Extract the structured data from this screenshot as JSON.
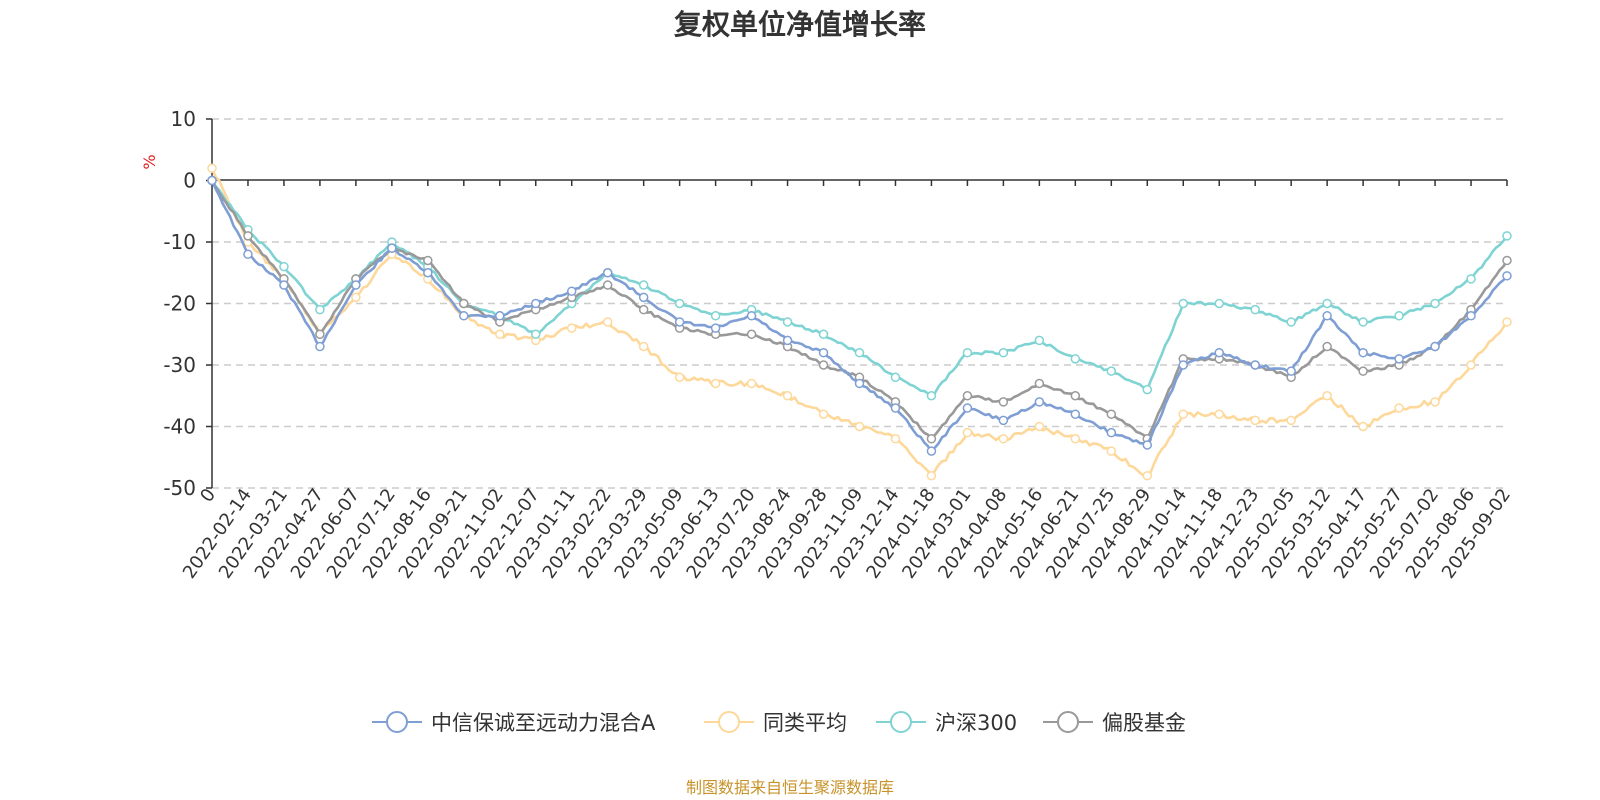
{
  "chart_data": {
    "type": "line",
    "title": "复权单位净值增长率",
    "ylabel": "%",
    "ylim": [
      -50,
      10
    ],
    "yticks": [
      10,
      0,
      -10,
      -20,
      -30,
      -40,
      -50
    ],
    "grid": true,
    "legend_position": "bottom",
    "x_labels": [
      "0",
      "2022-02-14",
      "2022-03-21",
      "2022-04-27",
      "2022-06-07",
      "2022-07-12",
      "2022-08-16",
      "2022-09-21",
      "2022-11-02",
      "2022-12-07",
      "2023-01-11",
      "2023-02-22",
      "2023-03-29",
      "2023-05-09",
      "2023-06-13",
      "2023-07-20",
      "2023-08-24",
      "2023-09-28",
      "2023-11-09",
      "2023-12-14",
      "2024-01-18",
      "2024-03-01",
      "2024-04-08",
      "2024-05-16",
      "2024-06-21",
      "2024-07-25",
      "2024-08-29",
      "2024-10-14",
      "2024-11-18",
      "2024-12-23",
      "2025-02-05",
      "2025-03-12",
      "2025-04-17",
      "2025-05-27",
      "2025-07-02",
      "2025-08-06",
      "2025-09-02"
    ],
    "x": [
      "0",
      "2022-02-14",
      "2022-03-21",
      "2022-04-27",
      "2022-06-07",
      "2022-07-12",
      "2022-08-16",
      "2022-09-21",
      "2022-11-02",
      "2022-12-07",
      "2023-01-11",
      "2023-02-22",
      "2023-03-29",
      "2023-05-09",
      "2023-06-13",
      "2023-07-20",
      "2023-08-24",
      "2023-09-28",
      "2023-11-09",
      "2023-12-14",
      "2024-01-18",
      "2024-03-01",
      "2024-04-08",
      "2024-05-16",
      "2024-06-21",
      "2024-07-25",
      "2024-08-29",
      "2024-10-14",
      "2024-11-18",
      "2024-12-23",
      "2025-02-05",
      "2025-03-12",
      "2025-04-17",
      "2025-05-27",
      "2025-07-02",
      "2025-08-06",
      "2025-09-02"
    ],
    "series": [
      {
        "name": "中信保诚至远动力混合A",
        "color": "#7f9fd4",
        "values": [
          0,
          -12,
          -17,
          -27,
          -17,
          -11,
          -15,
          -22,
          -22,
          -20,
          -18,
          -15,
          -19,
          -23,
          -24,
          -22,
          -26,
          -28,
          -33,
          -37,
          -44,
          -37,
          -39,
          -36,
          -38,
          -41,
          -43,
          -30,
          -28,
          -30,
          -31,
          -22,
          -28,
          -29,
          -27,
          -22,
          -15.5
        ]
      },
      {
        "name": "同类平均",
        "color": "#fdd89a",
        "values": [
          2,
          -10,
          -16,
          -25,
          -19,
          -12,
          -16,
          -22,
          -25,
          -26,
          -24,
          -23,
          -27,
          -32,
          -33,
          -33,
          -35,
          -38,
          -40,
          -42,
          -48,
          -41,
          -42,
          -40,
          -42,
          -44,
          -48,
          -38,
          -38,
          -39,
          -39,
          -35,
          -40,
          -37,
          -36,
          -30,
          -23
        ]
      },
      {
        "name": "沪深300",
        "color": "#7fd3d3",
        "values": [
          0,
          -8,
          -14,
          -21,
          -16,
          -10,
          -14,
          -20,
          -22,
          -25,
          -20,
          -15,
          -17,
          -20,
          -22,
          -21,
          -23,
          -25,
          -28,
          -32,
          -35,
          -28,
          -28,
          -26,
          -29,
          -31,
          -34,
          -20,
          -20,
          -21,
          -23,
          -20,
          -23,
          -22,
          -20,
          -16,
          -9
        ]
      },
      {
        "name": "偏股基金",
        "color": "#999999",
        "values": [
          0,
          -9,
          -16,
          -25,
          -16,
          -11,
          -13,
          -20,
          -23,
          -21,
          -19,
          -17,
          -21,
          -24,
          -25,
          -25,
          -27,
          -30,
          -32,
          -36,
          -42,
          -35,
          -36,
          -33,
          -35,
          -38,
          -42,
          -29,
          -29,
          -30,
          -32,
          -27,
          -31,
          -30,
          -27,
          -21,
          -13
        ]
      }
    ]
  },
  "footer": {
    "source": "制图数据来自恒生聚源数据库"
  }
}
